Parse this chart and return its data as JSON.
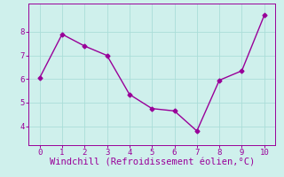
{
  "x": [
    0,
    1,
    2,
    3,
    4,
    5,
    6,
    7,
    8,
    9,
    10
  ],
  "y": [
    6.05,
    7.9,
    7.4,
    7.0,
    5.35,
    4.75,
    4.65,
    3.8,
    5.95,
    6.35,
    8.7
  ],
  "line_color": "#990099",
  "marker": "D",
  "marker_size": 2.5,
  "linewidth": 1.0,
  "xlabel": "Windchill (Refroidissement éolien,°C)",
  "xlim": [
    -0.5,
    10.5
  ],
  "ylim": [
    3.2,
    9.2
  ],
  "xticks": [
    0,
    1,
    2,
    3,
    4,
    5,
    6,
    7,
    8,
    9,
    10
  ],
  "yticks": [
    4,
    5,
    6,
    7,
    8
  ],
  "background_color": "#cff0ec",
  "grid_color": "#aaddd8",
  "tick_color": "#990099",
  "label_color": "#990099",
  "xlabel_fontsize": 7.5,
  "tick_fontsize": 6.5
}
